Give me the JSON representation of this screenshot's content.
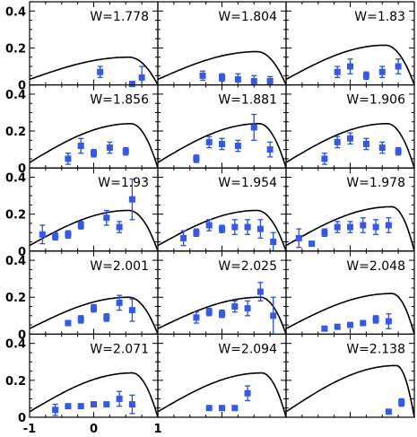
{
  "chart_data": {
    "type": "scatter",
    "layout": {
      "rows": 5,
      "cols": 3
    },
    "shared_axes": {
      "xlim": [
        -1,
        1
      ],
      "ylim": [
        0,
        0.45
      ],
      "x_tick_labels": [
        "-1",
        "0",
        "1"
      ],
      "x_tick_values": [
        -1,
        0,
        1
      ],
      "y_tick_labels": [
        "0",
        "0.2",
        "0.4"
      ],
      "y_tick_values": [
        0,
        0.2,
        0.4
      ]
    },
    "colors": {
      "points": "#3457f0",
      "curve": "#000000"
    },
    "panels": [
      {
        "label": "W=1.778",
        "points": [
          [
            0.1,
            0.07,
            0.03
          ],
          [
            0.75,
            0.04,
            0.06
          ],
          [
            0.6,
            0.005,
            0.01
          ]
        ],
        "curve_peak": 0.15,
        "curve_peak_x": 0.55
      },
      {
        "label": "W=1.804",
        "points": [
          [
            -0.3,
            0.05,
            0.025
          ],
          [
            0.0,
            0.04,
            0.02
          ],
          [
            0.25,
            0.03,
            0.03
          ],
          [
            0.5,
            0.02,
            0.03
          ],
          [
            0.75,
            0.02,
            0.025
          ]
        ],
        "curve_peak": 0.18,
        "curve_peak_x": 0.55
      },
      {
        "label": "W=1.83",
        "points": [
          [
            -0.2,
            0.07,
            0.03
          ],
          [
            0.0,
            0.1,
            0.04
          ],
          [
            0.25,
            0.05,
            0.02
          ],
          [
            0.5,
            0.07,
            0.03
          ],
          [
            0.75,
            0.1,
            0.04
          ]
        ],
        "curve_peak": 0.215,
        "curve_peak_x": 0.55
      },
      {
        "label": "W=1.856",
        "points": [
          [
            -0.4,
            0.05,
            0.03
          ],
          [
            -0.2,
            0.12,
            0.04
          ],
          [
            0.0,
            0.08,
            0.02
          ],
          [
            0.25,
            0.11,
            0.03
          ],
          [
            0.5,
            0.09,
            0.02
          ]
        ],
        "curve_peak": 0.24,
        "curve_peak_x": 0.58
      },
      {
        "label": "W=1.881",
        "points": [
          [
            -0.4,
            0.05,
            0.02
          ],
          [
            -0.2,
            0.14,
            0.03
          ],
          [
            0.0,
            0.13,
            0.03
          ],
          [
            0.25,
            0.12,
            0.03
          ],
          [
            0.5,
            0.22,
            0.07
          ],
          [
            0.75,
            0.1,
            0.04
          ]
        ],
        "curve_peak": 0.24,
        "curve_peak_x": 0.58
      },
      {
        "label": "W=1.906",
        "points": [
          [
            -0.4,
            0.05,
            0.03
          ],
          [
            -0.2,
            0.14,
            0.03
          ],
          [
            0.0,
            0.16,
            0.03
          ],
          [
            0.25,
            0.13,
            0.03
          ],
          [
            0.5,
            0.11,
            0.03
          ],
          [
            0.75,
            0.09,
            0.02
          ]
        ],
        "curve_peak": 0.24,
        "curve_peak_x": 0.58
      },
      {
        "label": "W=1.93",
        "points": [
          [
            -0.8,
            0.09,
            0.05
          ],
          [
            -0.6,
            0.08,
            0.02
          ],
          [
            -0.4,
            0.09,
            0.02
          ],
          [
            -0.2,
            0.14,
            0.02
          ],
          [
            0.2,
            0.18,
            0.04
          ],
          [
            0.4,
            0.13,
            0.03
          ],
          [
            0.6,
            0.28,
            0.11
          ]
        ],
        "curve_peak": 0.22,
        "curve_peak_x": 0.55
      },
      {
        "label": "W=1.954",
        "points": [
          [
            -0.6,
            0.07,
            0.04
          ],
          [
            -0.4,
            0.1,
            0.02
          ],
          [
            -0.2,
            0.14,
            0.03
          ],
          [
            0.0,
            0.12,
            0.02
          ],
          [
            0.2,
            0.13,
            0.04
          ],
          [
            0.4,
            0.13,
            0.04
          ],
          [
            0.6,
            0.12,
            0.05
          ],
          [
            0.8,
            0.05,
            0.05
          ]
        ],
        "curve_peak": 0.22,
        "curve_peak_x": 0.55
      },
      {
        "label": "W=1.978",
        "points": [
          [
            -0.8,
            0.07,
            0.05
          ],
          [
            -0.6,
            0.04,
            0.01
          ],
          [
            -0.4,
            0.1,
            0.02
          ],
          [
            -0.2,
            0.13,
            0.03
          ],
          [
            0.0,
            0.13,
            0.03
          ],
          [
            0.2,
            0.14,
            0.04
          ],
          [
            0.4,
            0.13,
            0.04
          ],
          [
            0.6,
            0.14,
            0.04
          ]
        ],
        "curve_peak": 0.24,
        "curve_peak_x": 0.65
      },
      {
        "label": "W=2.001",
        "points": [
          [
            -0.4,
            0.06,
            0.01
          ],
          [
            -0.2,
            0.08,
            0.02
          ],
          [
            0.0,
            0.14,
            0.02
          ],
          [
            0.2,
            0.09,
            0.02
          ],
          [
            0.4,
            0.17,
            0.04
          ],
          [
            0.6,
            0.13,
            0.06
          ]
        ],
        "curve_peak": 0.2,
        "curve_peak_x": 0.55
      },
      {
        "label": "W=2.025",
        "points": [
          [
            -0.4,
            0.09,
            0.03
          ],
          [
            -0.2,
            0.12,
            0.02
          ],
          [
            0.0,
            0.11,
            0.02
          ],
          [
            0.2,
            0.15,
            0.03
          ],
          [
            0.4,
            0.14,
            0.04
          ],
          [
            0.6,
            0.23,
            0.05
          ],
          [
            0.8,
            0.1,
            0.1
          ]
        ],
        "curve_peak": 0.2,
        "curve_peak_x": 0.6
      },
      {
        "label": "W=2.048",
        "points": [
          [
            -0.4,
            0.03,
            0.01
          ],
          [
            -0.2,
            0.04,
            0.01
          ],
          [
            0.0,
            0.05,
            0.01
          ],
          [
            0.2,
            0.06,
            0.01
          ],
          [
            0.4,
            0.08,
            0.02
          ],
          [
            0.6,
            0.07,
            0.04
          ]
        ],
        "curve_peak": 0.22,
        "curve_peak_x": 0.65
      },
      {
        "label": "W=2.071",
        "points": [
          [
            -0.6,
            0.04,
            0.03
          ],
          [
            -0.4,
            0.06,
            0.01
          ],
          [
            -0.2,
            0.06,
            0.01
          ],
          [
            0.0,
            0.07,
            0.01
          ],
          [
            0.2,
            0.07,
            0.01
          ],
          [
            0.4,
            0.1,
            0.04
          ],
          [
            0.6,
            0.07,
            0.05
          ]
        ],
        "curve_peak": 0.24,
        "curve_peak_x": 0.6
      },
      {
        "label": "W=2.094",
        "points": [
          [
            -0.2,
            0.05,
            0.01
          ],
          [
            0.0,
            0.05,
            0.01
          ],
          [
            0.2,
            0.05,
            0.01
          ],
          [
            0.4,
            0.13,
            0.04
          ]
        ],
        "curve_peak": 0.24,
        "curve_peak_x": 0.62
      },
      {
        "label": "W=2.138",
        "points": [
          [
            0.6,
            0.03,
            0.01
          ],
          [
            0.8,
            0.08,
            0.02
          ]
        ],
        "curve_peak": 0.28,
        "curve_peak_x": 0.72
      }
    ]
  }
}
